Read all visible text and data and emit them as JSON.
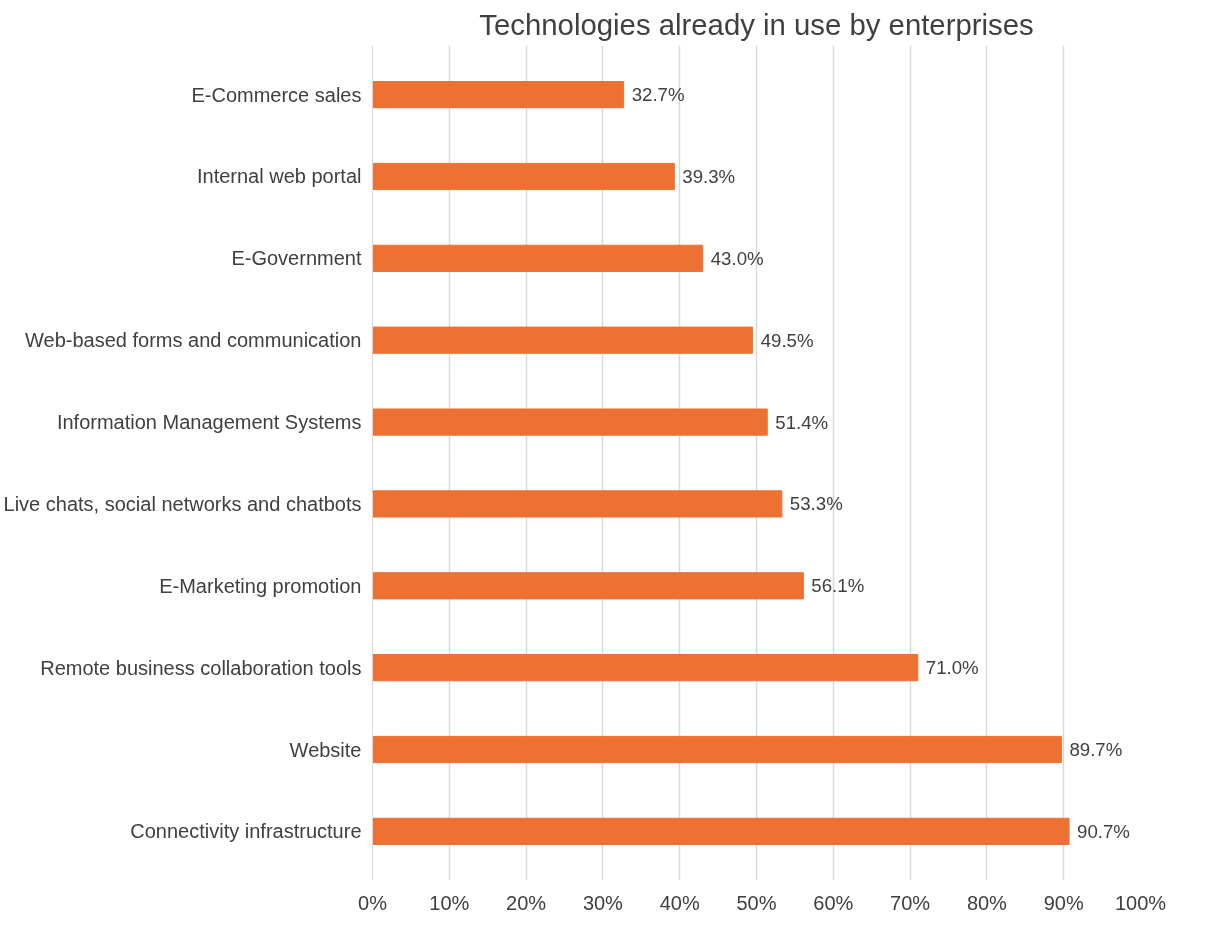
{
  "chart_data": {
    "type": "bar",
    "orientation": "horizontal",
    "title": "Technologies already in use by enterprises",
    "categories": [
      "E-Commerce sales",
      "Internal web portal",
      "E-Government",
      "Web-based forms and communication",
      "Information Management Systems",
      "Live chats, social networks and chatbots",
      "E-Marketing promotion",
      "Remote business collaboration tools",
      "Website",
      "Connectivity infrastructure"
    ],
    "values": [
      32.7,
      39.3,
      43.0,
      49.5,
      51.4,
      53.3,
      56.1,
      71.0,
      89.7,
      90.7
    ],
    "value_labels": [
      "32.7%",
      "39.3%",
      "43.0%",
      "49.5%",
      "51.4%",
      "53.3%",
      "56.1%",
      "71.0%",
      "89.7%",
      "90.7%"
    ],
    "color": "#ed7133",
    "xlim": [
      0,
      100
    ],
    "xticks": [
      {
        "value": 0,
        "label": "0%"
      },
      {
        "value": 10,
        "label": "10%"
      },
      {
        "value": 20,
        "label": "20%"
      },
      {
        "value": 30,
        "label": "30%"
      },
      {
        "value": 40,
        "label": "40%"
      },
      {
        "value": 50,
        "label": "50%"
      },
      {
        "value": 60,
        "label": "60%"
      },
      {
        "value": 70,
        "label": "70%"
      },
      {
        "value": 80,
        "label": "80%"
      },
      {
        "value": 90,
        "label": "90%"
      },
      {
        "value": 100,
        "label": "100%"
      }
    ],
    "grid": "x"
  }
}
